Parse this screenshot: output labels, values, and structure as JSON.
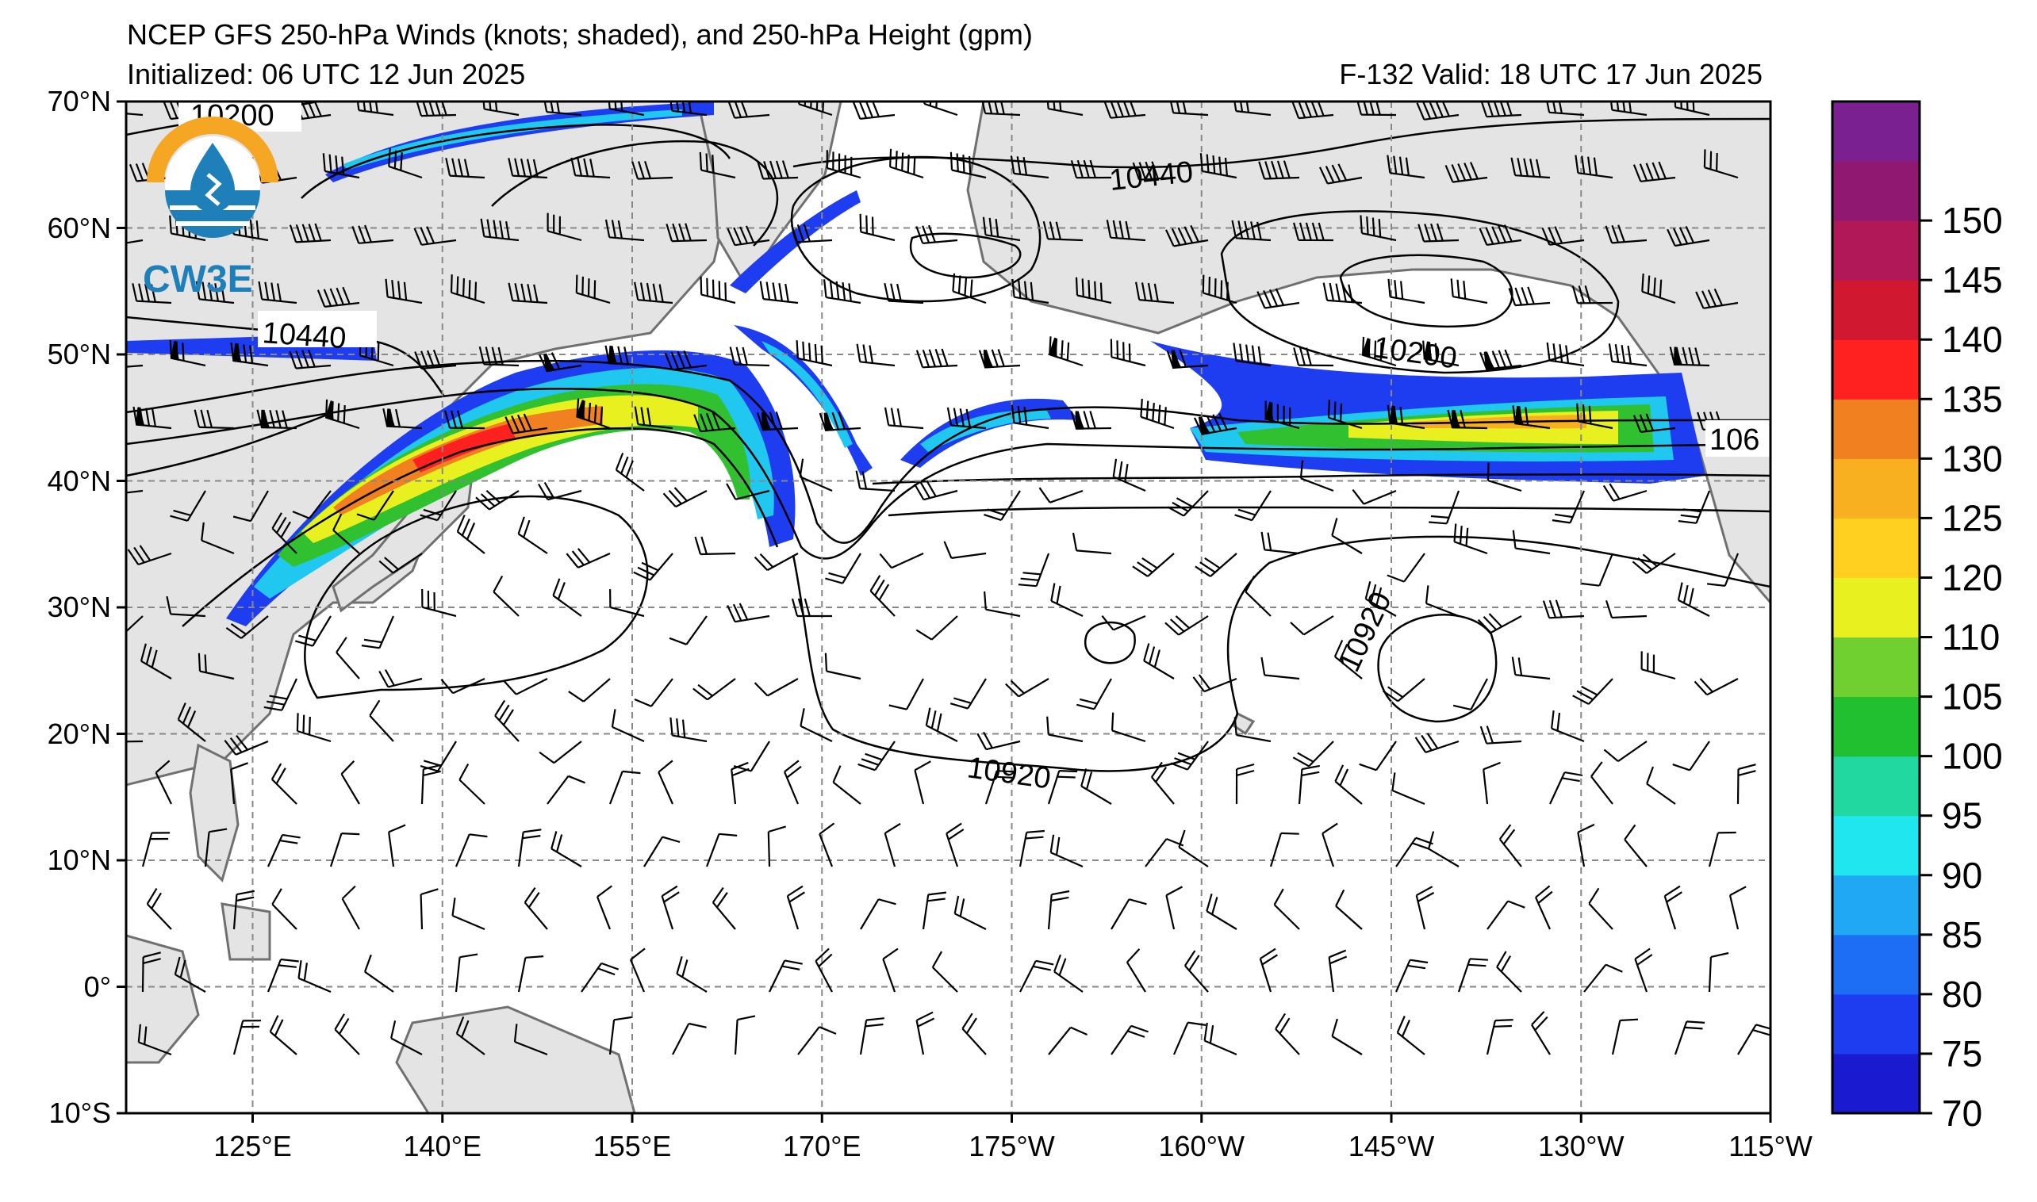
{
  "header": {
    "title": "NCEP GFS 250-hPa Winds (knots; shaded), and 250-hPa Height (gpm)",
    "initialized": "Initialized: 06 UTC 12 Jun 2025",
    "valid": "F-132  Valid: 18 UTC 17 Jun 2025"
  },
  "logo": {
    "text": "CW3E",
    "ring_color": "#f5a623",
    "drop_color": "#1f7fb8"
  },
  "axes": {
    "lat_labels": [
      "70°N",
      "60°N",
      "50°N",
      "40°N",
      "30°N",
      "20°N",
      "10°N",
      "0°",
      "10°S"
    ],
    "lon_labels": [
      "125°E",
      "140°E",
      "155°E",
      "170°E",
      "175°W",
      "160°W",
      "145°W",
      "130°W",
      "115°W"
    ]
  },
  "contour_labels": [
    {
      "text": "10200"
    },
    {
      "text": "10440"
    },
    {
      "text": "10440"
    },
    {
      "text": "10200"
    },
    {
      "text": "106"
    },
    {
      "text": "10920"
    },
    {
      "text": "10920"
    }
  ],
  "colorbar": {
    "ticks": [
      "70",
      "75",
      "80",
      "85",
      "90",
      "95",
      "100",
      "105",
      "110",
      "120",
      "125",
      "130",
      "135",
      "140",
      "145",
      "150"
    ],
    "colors": [
      "#1a1ad0",
      "#1e3cf0",
      "#1e6ef5",
      "#20a8f5",
      "#20e6f0",
      "#20d8a0",
      "#20c030",
      "#70d030",
      "#e8f020",
      "#ffd020",
      "#f8b020",
      "#f08020",
      "#ff2020",
      "#d01830",
      "#b01858",
      "#901870",
      "#7a2090"
    ]
  }
}
